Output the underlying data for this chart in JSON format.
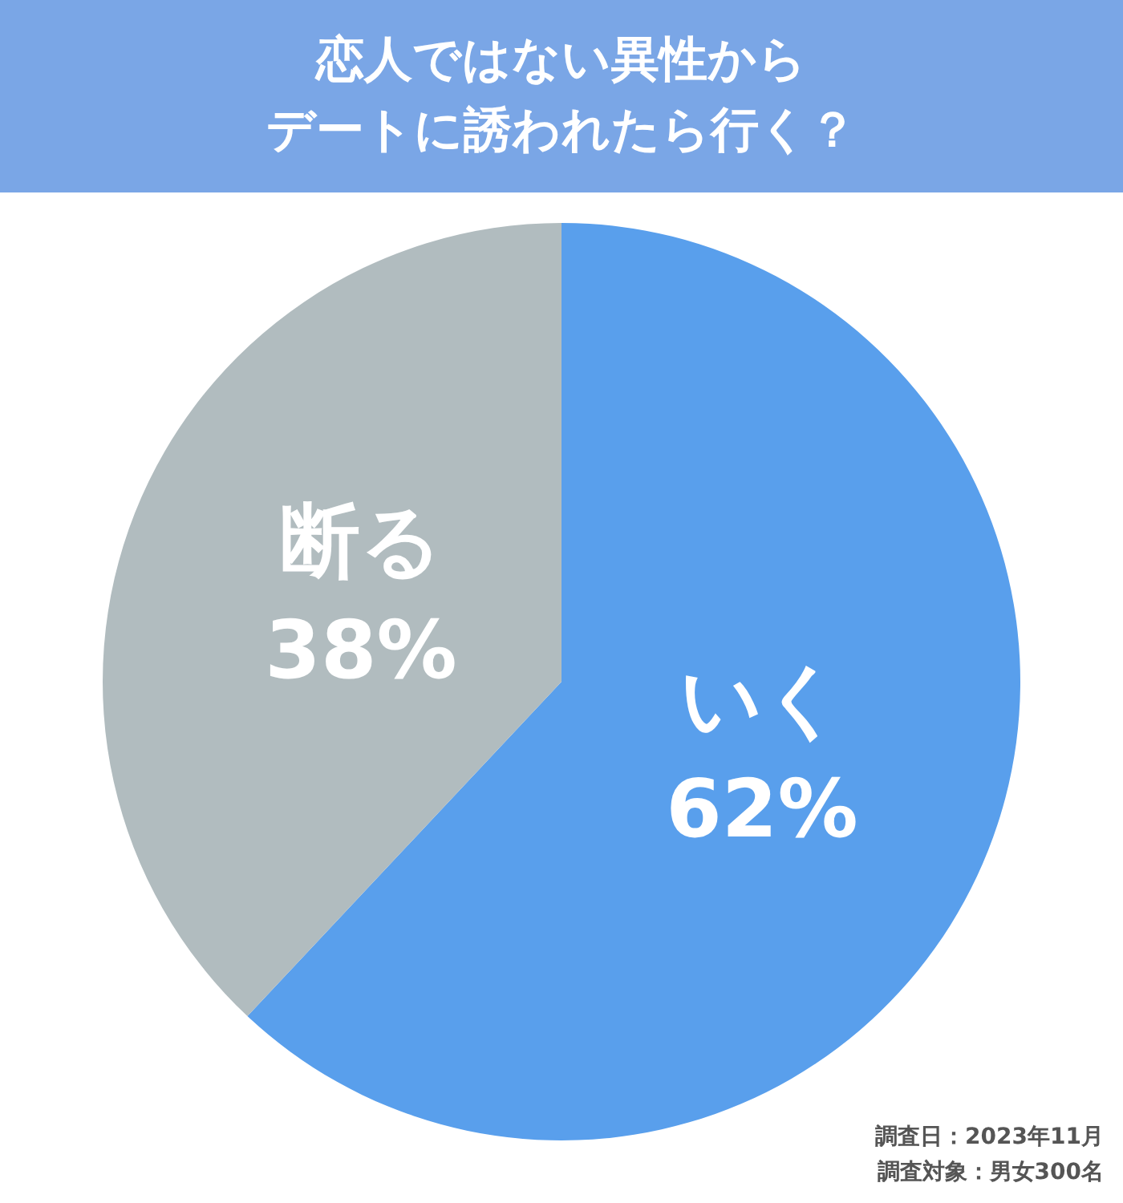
{
  "chart_data": {
    "type": "pie",
    "title": "恋人ではない異性から",
    "subtitle": "デートに誘われたら行く？",
    "categories": [
      "いく",
      "断る"
    ],
    "values": [
      62,
      38
    ],
    "value_labels": [
      "62%",
      "38%"
    ],
    "colors": [
      "#599fec",
      "#b1bcbf"
    ],
    "legend": false,
    "annotations": [
      "調査日：2023年11月",
      "調査対象：男女300名"
    ]
  }
}
